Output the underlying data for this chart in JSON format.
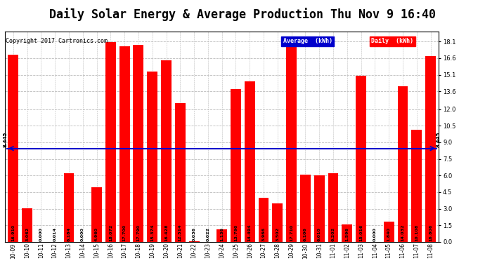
{
  "title": "Daily Solar Energy & Average Production Thu Nov 9 16:40",
  "copyright": "Copyright 2017 Cartronics.com",
  "categories": [
    "10-09",
    "10-10",
    "10-11",
    "10-12",
    "10-13",
    "10-14",
    "10-15",
    "10-16",
    "10-17",
    "10-18",
    "10-19",
    "10-20",
    "10-21",
    "10-22",
    "10-23",
    "10-24",
    "10-25",
    "10-26",
    "10-27",
    "10-28",
    "10-29",
    "10-30",
    "10-31",
    "11-01",
    "11-02",
    "11-03",
    "11-04",
    "11-05",
    "11-06",
    "11-07",
    "11-08"
  ],
  "values": [
    16.91,
    3.062,
    0.0,
    0.014,
    6.184,
    0.0,
    4.96,
    18.072,
    17.7,
    17.79,
    15.374,
    16.428,
    12.514,
    0.036,
    0.022,
    1.136,
    13.79,
    14.494,
    3.966,
    3.502,
    17.71,
    6.106,
    6.01,
    6.202,
    1.596,
    15.016,
    0.0,
    1.84,
    14.032,
    10.108,
    16.806
  ],
  "average": 8.445,
  "bar_color": "#ff0000",
  "average_color": "#0000cc",
  "ylim": [
    0,
    19.0
  ],
  "yticks": [
    0.0,
    1.5,
    3.0,
    4.5,
    6.0,
    7.5,
    9.0,
    10.5,
    12.0,
    13.6,
    15.1,
    16.6,
    18.1
  ],
  "grid_color": "#bbbbbb",
  "background_color": "#ffffff",
  "legend_avg_bg": "#0000cc",
  "legend_daily_bg": "#ff0000",
  "title_fontsize": 12,
  "tick_fontsize": 5.5,
  "value_fontsize": 4.6,
  "avg_label": "8.445",
  "copyright_fontsize": 6.0,
  "legend_fontsize": 6.0
}
